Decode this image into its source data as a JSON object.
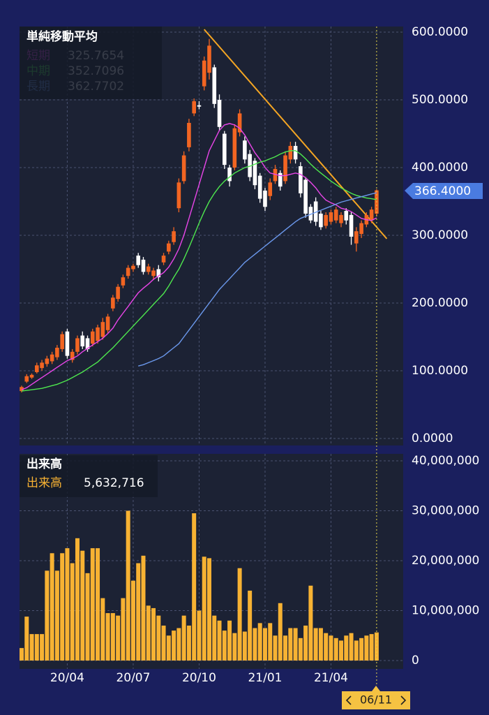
{
  "chart_data": [
    {
      "type": "candlestick",
      "title": "単純移動平均",
      "categories": [
        null,
        null,
        null,
        null,
        null,
        null,
        null,
        null,
        null,
        "20/04",
        null,
        null,
        null,
        null,
        null,
        null,
        null,
        null,
        null,
        null,
        null,
        null,
        "20/07",
        null,
        null,
        null,
        null,
        null,
        null,
        null,
        null,
        null,
        null,
        null,
        null,
        "20/10",
        null,
        null,
        null,
        null,
        null,
        null,
        null,
        null,
        null,
        null,
        null,
        null,
        "21/01",
        null,
        null,
        null,
        null,
        null,
        null,
        null,
        null,
        null,
        null,
        null,
        null,
        "21/04",
        null,
        null,
        null,
        null,
        null,
        null,
        null,
        null,
        "06/11"
      ],
      "open": [
        70,
        84,
        90,
        98,
        104,
        110,
        114,
        120,
        132,
        158,
        116,
        128,
        152,
        148,
        140,
        144,
        150,
        160,
        192,
        206,
        226,
        240,
        250,
        270,
        264,
        246,
        240,
        250,
        260,
        276,
        290,
        340,
        380,
        430,
        480,
        492,
        520,
        540,
        548,
        500,
        450,
        400,
        400,
        452,
        440,
        420,
        410,
        388,
        366,
        358,
        380,
        392,
        380,
        412,
        432,
        402,
        382,
        342,
        350,
        332,
        314,
        320,
        322,
        318,
        336,
        330,
        288,
        302,
        316,
        322,
        332
      ],
      "high": [
        78,
        95,
        96,
        112,
        116,
        122,
        128,
        138,
        158,
        162,
        132,
        152,
        158,
        152,
        162,
        168,
        178,
        184,
        212,
        228,
        242,
        256,
        258,
        274,
        268,
        258,
        252,
        256,
        274,
        292,
        312,
        384,
        424,
        472,
        502,
        498,
        564,
        590,
        552,
        508,
        454,
        404,
        464,
        486,
        446,
        426,
        414,
        392,
        370,
        384,
        404,
        396,
        424,
        438,
        438,
        408,
        386,
        346,
        356,
        336,
        334,
        338,
        342,
        334,
        340,
        334,
        312,
        322,
        334,
        342,
        368
      ],
      "low": [
        68,
        82,
        88,
        96,
        100,
        106,
        110,
        116,
        128,
        118,
        112,
        124,
        132,
        128,
        136,
        140,
        146,
        156,
        188,
        202,
        222,
        236,
        246,
        252,
        242,
        242,
        234,
        232,
        256,
        272,
        286,
        334,
        376,
        424,
        476,
        486,
        514,
        530,
        488,
        454,
        398,
        372,
        396,
        446,
        406,
        380,
        368,
        348,
        336,
        352,
        376,
        366,
        376,
        406,
        406,
        356,
        326,
        318,
        314,
        308,
        310,
        316,
        318,
        312,
        316,
        286,
        276,
        296,
        312,
        318,
        328
      ],
      "close": [
        76,
        92,
        94,
        108,
        112,
        118,
        124,
        134,
        154,
        122,
        128,
        148,
        136,
        132,
        158,
        164,
        172,
        180,
        208,
        224,
        238,
        252,
        255,
        256,
        246,
        254,
        248,
        238,
        270,
        288,
        306,
        378,
        418,
        466,
        498,
        490,
        558,
        580,
        494,
        460,
        404,
        380,
        458,
        480,
        412,
        386,
        374,
        354,
        342,
        378,
        398,
        372,
        418,
        432,
        412,
        362,
        332,
        322,
        320,
        312,
        330,
        334,
        338,
        330,
        322,
        298,
        306,
        318,
        330,
        338,
        366.4
      ],
      "up_color": "#f26522",
      "down_color": "#ffffff",
      "price_label": "366.4000",
      "series": [
        {
          "name": "短期",
          "color": "#e845e8",
          "values": [
            72,
            75,
            80,
            85,
            90,
            95,
            100,
            105,
            110,
            115,
            118,
            122,
            128,
            133,
            138,
            143,
            148,
            155,
            163,
            175,
            185,
            195,
            205,
            215,
            222,
            228,
            235,
            240,
            245,
            253,
            265,
            280,
            300,
            325,
            350,
            375,
            400,
            425,
            440,
            455,
            463,
            465,
            463,
            458,
            448,
            435,
            422,
            412,
            400,
            392,
            390,
            388,
            388,
            390,
            392,
            390,
            385,
            378,
            370,
            360,
            352,
            348,
            345,
            340,
            338,
            335,
            330,
            325,
            323,
            322,
            325.7654
          ]
        },
        {
          "name": "中期",
          "color": "#4ee84e",
          "values": [
            70,
            71,
            72,
            73,
            74,
            76,
            78,
            80,
            83,
            86,
            90,
            94,
            98,
            103,
            108,
            113,
            120,
            127,
            134,
            142,
            150,
            158,
            166,
            174,
            182,
            190,
            198,
            206,
            214,
            225,
            238,
            250,
            265,
            282,
            300,
            318,
            335,
            350,
            362,
            372,
            380,
            386,
            392,
            396,
            400,
            402,
            405,
            408,
            410,
            413,
            416,
            420,
            423,
            425,
            425,
            420,
            413,
            405,
            398,
            392,
            386,
            380,
            375,
            370,
            366,
            362,
            359,
            357,
            355,
            354,
            352.7096
          ]
        },
        {
          "name": "長期",
          "color": "#6b98ec",
          "values": [
            null,
            null,
            null,
            null,
            null,
            null,
            null,
            null,
            null,
            null,
            null,
            null,
            null,
            null,
            null,
            null,
            null,
            null,
            null,
            null,
            null,
            null,
            null,
            107,
            109,
            112,
            115,
            118,
            122,
            128,
            134,
            140,
            150,
            160,
            170,
            180,
            190,
            200,
            210,
            220,
            228,
            236,
            244,
            252,
            260,
            266,
            272,
            278,
            284,
            290,
            296,
            302,
            308,
            314,
            320,
            325,
            328,
            331,
            334,
            337,
            340,
            343,
            346,
            349,
            351,
            353,
            355,
            357,
            359,
            361,
            362.7702
          ]
        }
      ],
      "trendline": {
        "color": "#f5a623",
        "from": [
          36,
          604
        ],
        "to": [
          72,
          295
        ]
      },
      "ylim": [
        0,
        600
      ],
      "yticks": [
        {
          "value": 0,
          "label": "0.0000"
        },
        {
          "value": 100,
          "label": "100.0000"
        },
        {
          "value": 200,
          "label": "200.0000"
        },
        {
          "value": 300,
          "label": "300.0000"
        },
        {
          "value": 400,
          "label": "400.0000"
        },
        {
          "value": 500,
          "label": "500.0000"
        },
        {
          "value": 600,
          "label": "600.0000"
        }
      ],
      "grid": true
    },
    {
      "type": "bar",
      "title": "出来高",
      "series": [
        {
          "name": "出来高",
          "color": "#f7b233",
          "values": [
            2500000,
            8800000,
            5300000,
            5300000,
            5300000,
            18000000,
            21500000,
            18000000,
            21500000,
            22500000,
            19500000,
            24500000,
            22000000,
            17500000,
            22500000,
            22500000,
            12500000,
            9500000,
            9500000,
            9000000,
            12500000,
            30000000,
            16000000,
            19500000,
            21000000,
            11000000,
            10500000,
            9000000,
            7000000,
            5000000,
            6000000,
            6500000,
            9000000,
            7000000,
            29500000,
            10000000,
            20800000,
            20500000,
            9000000,
            8000000,
            6000000,
            8000000,
            5500000,
            18500000,
            5800000,
            14000000,
            6500000,
            7500000,
            6500000,
            7500000,
            5000000,
            11500000,
            5000000,
            6500000,
            6500000,
            4500000,
            7000000,
            15000000,
            6500000,
            6500000,
            5500000,
            5000000,
            4500000,
            4000000,
            5000000,
            5500000,
            4000000,
            4500000,
            5000000,
            5300000,
            5632716
          ],
          "last_value_label": "5,632,716"
        }
      ],
      "ylim": [
        0,
        40000000
      ],
      "yticks": [
        0,
        {
          "value": 10000000,
          "label": "10,000,000"
        },
        {
          "value": 20000000,
          "label": "20,000,000"
        },
        {
          "value": 30000000,
          "label": "30,000,000"
        },
        {
          "value": 40000000,
          "label": "40,000,000"
        }
      ],
      "grid": true
    }
  ]
}
